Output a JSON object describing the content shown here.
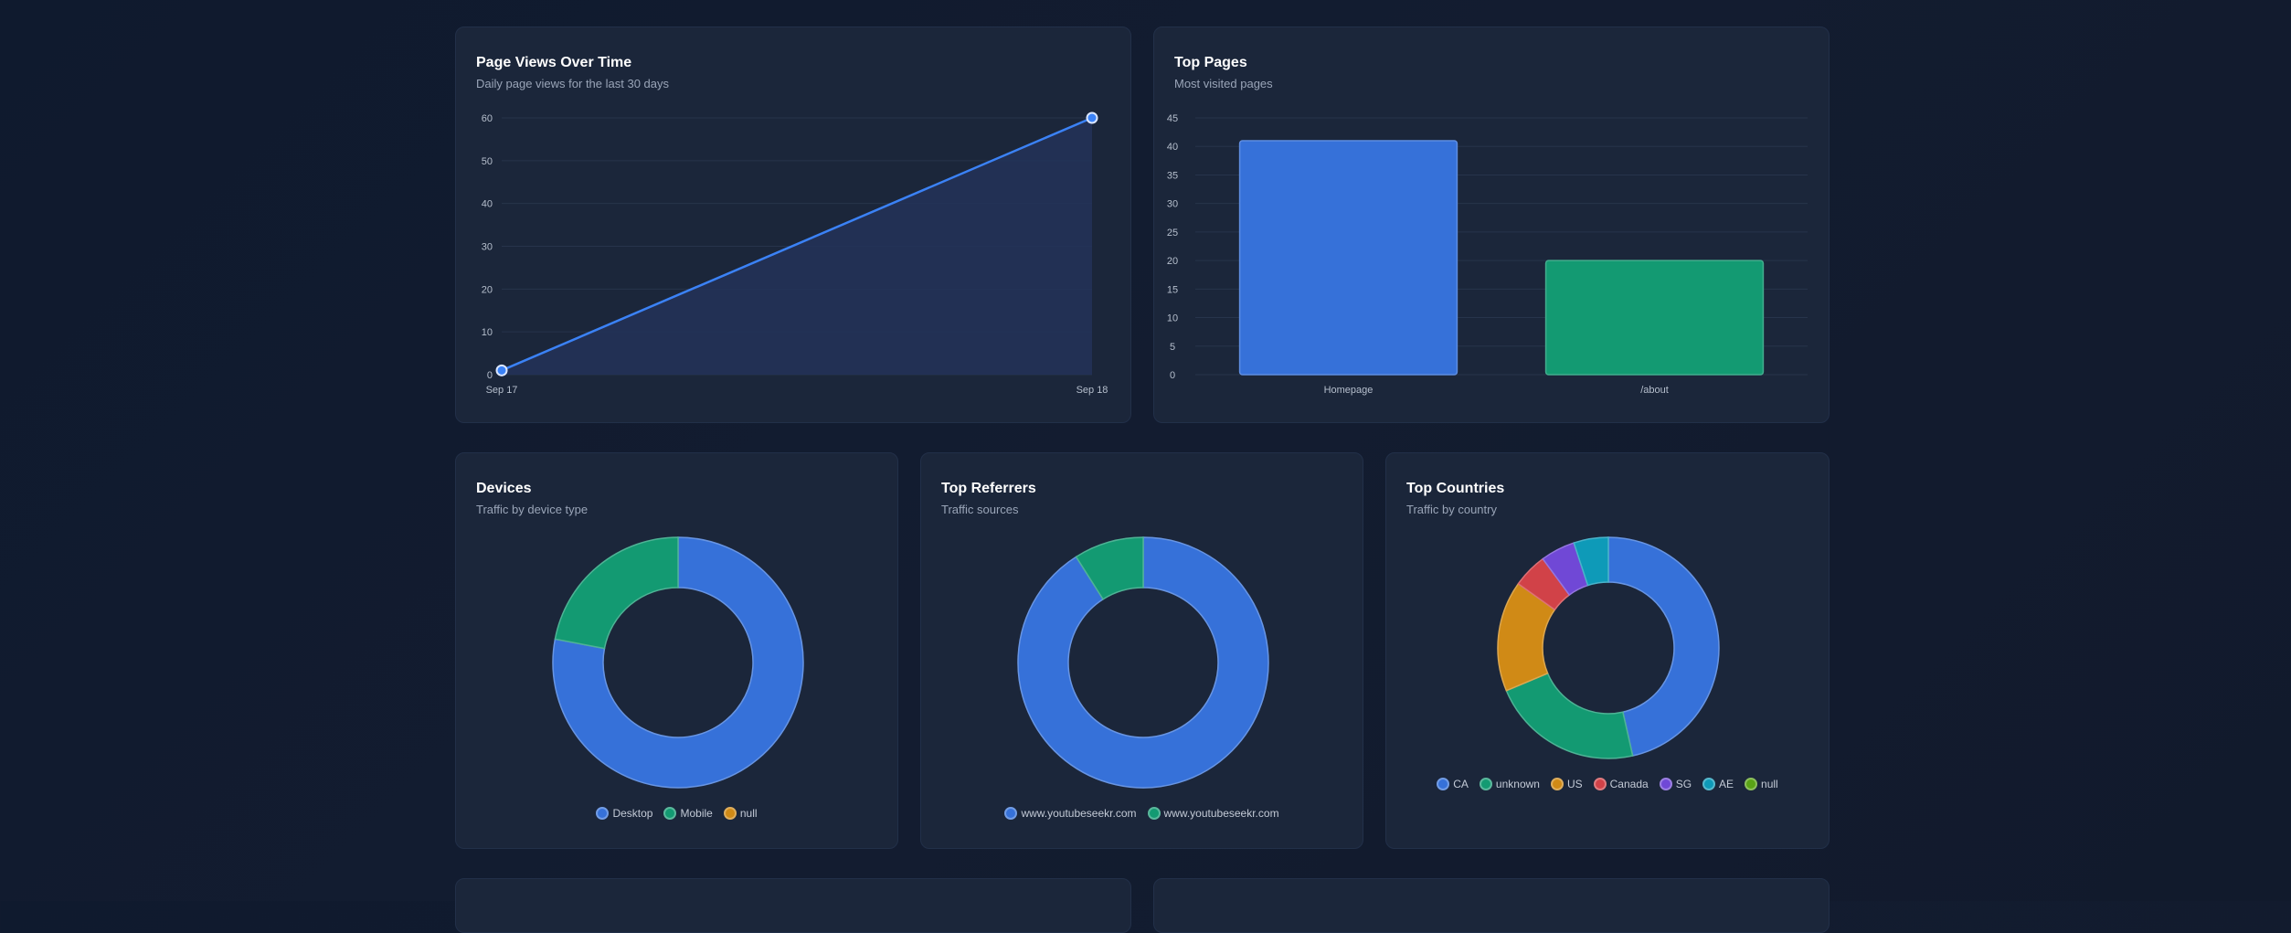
{
  "colors": {
    "blue": "#3671d9",
    "green": "#139a72",
    "amber": "#d08a16",
    "red": "#d14248",
    "purple": "#7048d6",
    "cyan": "#0e9ab8",
    "lime": "#5aa316"
  },
  "cards": {
    "page_views": {
      "title": "Page Views Over Time",
      "subtitle": "Daily page views for the last 30 days"
    },
    "top_pages": {
      "title": "Top Pages",
      "subtitle": "Most visited pages"
    },
    "devices": {
      "title": "Devices",
      "subtitle": "Traffic by device type"
    },
    "referrers": {
      "title": "Top Referrers",
      "subtitle": "Traffic sources"
    },
    "countries": {
      "title": "Top Countries",
      "subtitle": "Traffic by country"
    }
  },
  "chart_data": [
    {
      "id": "page_views",
      "type": "area",
      "title": "Page Views Over Time",
      "subtitle": "Daily page views for the last 30 days",
      "categories": [
        "Sep 17",
        "Sep 18"
      ],
      "values": [
        1,
        60
      ],
      "ylim": [
        0,
        60
      ],
      "yticks": [
        0,
        10,
        20,
        30,
        40,
        50,
        60
      ],
      "color": "#3b82f6"
    },
    {
      "id": "top_pages",
      "type": "bar",
      "title": "Top Pages",
      "subtitle": "Most visited pages",
      "categories": [
        "Homepage",
        "/about"
      ],
      "values": [
        41,
        20
      ],
      "ylim": [
        0,
        45
      ],
      "yticks": [
        0,
        5,
        10,
        15,
        20,
        25,
        30,
        35,
        40,
        45
      ],
      "colors": [
        "#3671d9",
        "#139a72"
      ]
    },
    {
      "id": "devices",
      "type": "pie",
      "title": "Devices",
      "subtitle": "Traffic by device type",
      "labels": [
        "Desktop",
        "Mobile",
        "null"
      ],
      "values": [
        78,
        22,
        0
      ],
      "colors": [
        "#3671d9",
        "#139a72",
        "#d08a16"
      ]
    },
    {
      "id": "referrers",
      "type": "pie",
      "title": "Top Referrers",
      "subtitle": "Traffic sources",
      "labels": [
        "www.youtubeseekr.com",
        "www.youtubeseekr.com"
      ],
      "values": [
        91,
        9
      ],
      "colors": [
        "#3671d9",
        "#139a72"
      ]
    },
    {
      "id": "countries",
      "type": "pie",
      "title": "Top Countries",
      "subtitle": "Traffic by country",
      "labels": [
        "CA",
        "unknown",
        "US",
        "Canada",
        "SG",
        "AE",
        "null"
      ],
      "values": [
        46,
        22,
        16,
        5,
        5,
        5,
        0
      ],
      "colors": [
        "#3671d9",
        "#139a72",
        "#d08a16",
        "#d14248",
        "#7048d6",
        "#0e9ab8",
        "#5aa316"
      ]
    }
  ]
}
